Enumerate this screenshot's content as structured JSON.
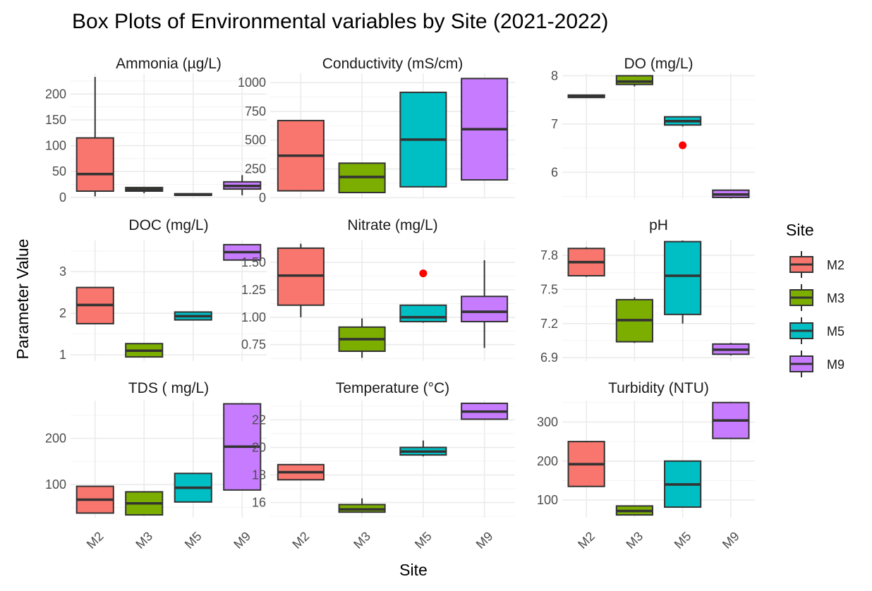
{
  "chart_data": {
    "type": "box",
    "title": "Box Plots of Environmental variables by Site (2021-2022)",
    "xlabel": "Site",
    "ylabel": "Parameter Value",
    "categories": [
      "M2",
      "M3",
      "M5",
      "M9"
    ],
    "legend": {
      "title": "Site",
      "placement": "right",
      "entries": [
        {
          "name": "M2",
          "color": "#F8766D"
        },
        {
          "name": "M3",
          "color": "#7CAE00"
        },
        {
          "name": "M5",
          "color": "#00BFC4"
        },
        {
          "name": "M9",
          "color": "#C77CFF"
        }
      ]
    },
    "outlier_color": "#FF0000",
    "grid": true,
    "panels": [
      {
        "title": "Ammonia (µg/L)",
        "ylim": [
          -3,
          240
        ],
        "yticks": [
          0,
          50,
          100,
          150,
          200
        ],
        "ytick_labels": [
          "0",
          "50",
          "100",
          "150",
          "200"
        ],
        "boxes": [
          {
            "site": "M2",
            "min": 2,
            "q1": 12,
            "median": 45,
            "q3": 115,
            "max": 233
          },
          {
            "site": "M3",
            "min": 8,
            "q1": 12,
            "median": 15,
            "q3": 19,
            "max": 20
          },
          {
            "site": "M5",
            "min": 3,
            "q1": 4,
            "median": 5,
            "q3": 7,
            "max": 8
          },
          {
            "site": "M9",
            "min": 4,
            "q1": 16,
            "median": 22,
            "q3": 30,
            "max": 43
          }
        ],
        "outliers": []
      },
      {
        "title": "Conductivity (mS/cm)",
        "ylim": [
          -10,
          1080
        ],
        "yticks": [
          0,
          250,
          500,
          750,
          1000
        ],
        "ytick_labels": [
          "0",
          "250",
          "500",
          "750",
          "1000"
        ],
        "boxes": [
          {
            "site": "M2",
            "min": 60,
            "q1": 60,
            "median": 365,
            "q3": 670,
            "max": 670
          },
          {
            "site": "M3",
            "min": 45,
            "q1": 45,
            "median": 180,
            "q3": 300,
            "max": 300
          },
          {
            "site": "M5",
            "min": 95,
            "q1": 95,
            "median": 505,
            "q3": 915,
            "max": 915
          },
          {
            "site": "M9",
            "min": 155,
            "q1": 155,
            "median": 595,
            "q3": 1035,
            "max": 1035
          }
        ],
        "outliers": []
      },
      {
        "title": "DO (mg/L)",
        "ylim": [
          5.45,
          8.05
        ],
        "yticks": [
          6,
          7,
          8
        ],
        "ytick_labels": [
          "6",
          "7",
          "8"
        ],
        "boxes": [
          {
            "site": "M2",
            "min": 7.54,
            "q1": 7.55,
            "median": 7.57,
            "q3": 7.6,
            "max": 7.61
          },
          {
            "site": "M3",
            "min": 7.78,
            "q1": 7.82,
            "median": 7.88,
            "q3": 8.0,
            "max": 8.01
          },
          {
            "site": "M5",
            "min": 6.95,
            "q1": 6.98,
            "median": 7.06,
            "q3": 7.15,
            "max": 7.16
          },
          {
            "site": "M9",
            "min": 5.46,
            "q1": 5.48,
            "median": 5.54,
            "q3": 5.63,
            "max": 5.64
          }
        ],
        "outliers": [
          {
            "site": "M5",
            "value": 6.56
          }
        ]
      },
      {
        "title": "DOC (mg/L)",
        "ylim": [
          0.85,
          3.75
        ],
        "yticks": [
          1,
          2,
          3
        ],
        "ytick_labels": [
          "1",
          "2",
          "3"
        ],
        "boxes": [
          {
            "site": "M2",
            "min": 1.75,
            "q1": 1.75,
            "median": 2.2,
            "q3": 2.62,
            "max": 2.62
          },
          {
            "site": "M3",
            "min": 0.95,
            "q1": 0.95,
            "median": 1.1,
            "q3": 1.27,
            "max": 1.27
          },
          {
            "site": "M5",
            "min": 1.84,
            "q1": 1.84,
            "median": 1.93,
            "q3": 2.03,
            "max": 2.03
          },
          {
            "site": "M9",
            "min": 3.28,
            "q1": 3.28,
            "median": 3.47,
            "q3": 3.65,
            "max": 3.65
          }
        ],
        "outliers": []
      },
      {
        "title": "Nitrate (mg/L)",
        "ylim": [
          0.6,
          1.7
        ],
        "yticks": [
          0.75,
          1.0,
          1.25,
          1.5
        ],
        "ytick_labels": [
          "0.75",
          "1.00",
          "1.25",
          "1.50"
        ],
        "boxes": [
          {
            "site": "M2",
            "min": 1.0,
            "q1": 1.11,
            "median": 1.38,
            "q3": 1.63,
            "max": 1.67
          },
          {
            "site": "M3",
            "min": 0.63,
            "q1": 0.69,
            "median": 0.8,
            "q3": 0.91,
            "max": 0.99
          },
          {
            "site": "M5",
            "min": 0.95,
            "q1": 0.96,
            "median": 1.0,
            "q3": 1.11,
            "max": 1.11
          },
          {
            "site": "M9",
            "min": 0.72,
            "q1": 0.96,
            "median": 1.05,
            "q3": 1.19,
            "max": 1.52
          }
        ],
        "outliers": [
          {
            "site": "M5",
            "value": 1.4
          }
        ]
      },
      {
        "title": "pH",
        "ylim": [
          6.87,
          7.93
        ],
        "yticks": [
          6.9,
          7.2,
          7.5,
          7.8
        ],
        "ytick_labels": [
          "6.9",
          "7.2",
          "7.5",
          "7.8"
        ],
        "boxes": [
          {
            "site": "M2",
            "min": 7.61,
            "q1": 7.62,
            "median": 7.74,
            "q3": 7.86,
            "max": 7.87
          },
          {
            "site": "M3",
            "min": 7.03,
            "q1": 7.04,
            "median": 7.23,
            "q3": 7.41,
            "max": 7.43
          },
          {
            "site": "M5",
            "min": 7.2,
            "q1": 7.28,
            "median": 7.62,
            "q3": 7.92,
            "max": 7.93
          },
          {
            "site": "M9",
            "min": 6.92,
            "q1": 6.93,
            "median": 6.97,
            "q3": 7.02,
            "max": 7.03
          }
        ],
        "outliers": []
      },
      {
        "title": "TDS ( mg/L)",
        "ylim": [
          28,
          282
        ],
        "yticks": [
          100,
          200
        ],
        "ytick_labels": [
          "100",
          "200"
        ],
        "boxes": [
          {
            "site": "M2",
            "min": 38,
            "q1": 38,
            "median": 67,
            "q3": 96,
            "max": 96
          },
          {
            "site": "M3",
            "min": 34,
            "q1": 34,
            "median": 59,
            "q3": 84,
            "max": 84
          },
          {
            "site": "M5",
            "min": 62,
            "q1": 62,
            "median": 93,
            "q3": 124,
            "max": 124
          },
          {
            "site": "M9",
            "min": 88,
            "q1": 88,
            "median": 182,
            "q3": 275,
            "max": 275
          }
        ],
        "outliers": []
      },
      {
        "title": "Temperature (°C)",
        "ylim": [
          14.9,
          23.4
        ],
        "yticks": [
          16,
          18,
          20,
          22
        ],
        "ytick_labels": [
          "16",
          "18",
          "20",
          "22"
        ],
        "boxes": [
          {
            "site": "M2",
            "min": 17.65,
            "q1": 17.65,
            "median": 18.2,
            "q3": 18.75,
            "max": 18.75
          },
          {
            "site": "M3",
            "min": 15.25,
            "q1": 15.3,
            "median": 15.5,
            "q3": 15.85,
            "max": 16.3
          },
          {
            "site": "M5",
            "min": 19.35,
            "q1": 19.45,
            "median": 19.7,
            "q3": 20.0,
            "max": 20.5
          },
          {
            "site": "M9",
            "min": 22.0,
            "q1": 22.05,
            "median": 22.6,
            "q3": 23.2,
            "max": 23.2
          }
        ],
        "outliers": []
      },
      {
        "title": "Turbidity (NTU)",
        "ylim": [
          55,
          355
        ],
        "yticks": [
          100,
          200,
          300
        ],
        "ytick_labels": [
          "100",
          "200",
          "300"
        ],
        "boxes": [
          {
            "site": "M2",
            "min": 135,
            "q1": 135,
            "median": 192,
            "q3": 250,
            "max": 250
          },
          {
            "site": "M3",
            "min": 62,
            "q1": 62,
            "median": 72,
            "q3": 85,
            "max": 85
          },
          {
            "site": "M5",
            "min": 82,
            "q1": 82,
            "median": 140,
            "q3": 200,
            "max": 200
          },
          {
            "site": "M9",
            "min": 258,
            "q1": 258,
            "median": 304,
            "q3": 350,
            "max": 350
          }
        ],
        "outliers": []
      }
    ]
  }
}
